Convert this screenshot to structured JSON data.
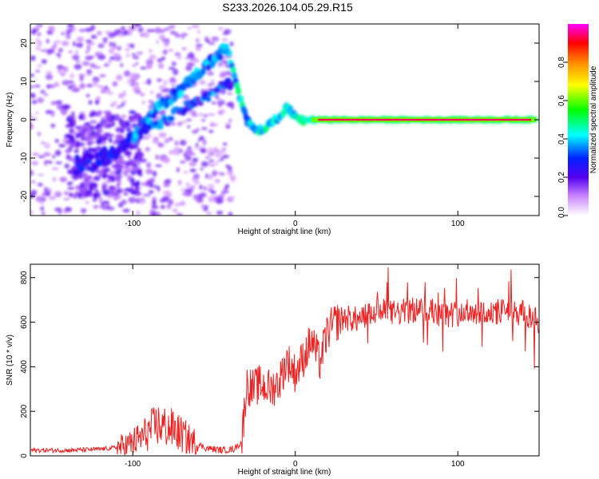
{
  "title": "S233.2026.104.05.29.R15",
  "chart_data": [
    {
      "type": "heatmap",
      "name": "spectrogram",
      "xlabel": "Height of straight line (km)",
      "ylabel": "Frequency (Hz)",
      "xlim": [
        -163,
        150
      ],
      "ylim": [
        -25,
        25
      ],
      "x_ticks": [
        -100,
        0,
        100
      ],
      "y_ticks": [
        -20,
        -10,
        0,
        10,
        20
      ],
      "ridge_trace": [
        {
          "x": -130,
          "y": -12
        },
        {
          "x": -115,
          "y": -9
        },
        {
          "x": -100,
          "y": -5
        },
        {
          "x": -85,
          "y": 3
        },
        {
          "x": -70,
          "y": 8
        },
        {
          "x": -55,
          "y": 14
        },
        {
          "x": -42,
          "y": 19
        },
        {
          "x": -35,
          "y": 7
        },
        {
          "x": -30,
          "y": 0
        },
        {
          "x": -22,
          "y": -3
        },
        {
          "x": -15,
          "y": -1
        },
        {
          "x": -5,
          "y": 3
        },
        {
          "x": 0,
          "y": 1
        },
        {
          "x": 5,
          "y": 0
        },
        {
          "x": 150,
          "y": 0
        }
      ],
      "colorbar": {
        "label": "Normalized spectral amplitude",
        "ticks": [
          "0.0",
          "0.2",
          "0.4",
          "0.6",
          "0.8"
        ],
        "range": [
          0,
          1
        ],
        "colors": [
          "#ffffff",
          "#9955ff",
          "#0000ff",
          "#00ffff",
          "#00ff00",
          "#ffff00",
          "#ff8800",
          "#ff0000",
          "#ff00ff"
        ]
      }
    },
    {
      "type": "line",
      "name": "snr",
      "xlabel": "Height of straight line (km)",
      "ylabel": "SNR (10 * v/v)",
      "xlim": [
        -163,
        150
      ],
      "ylim": [
        0,
        860
      ],
      "x_ticks": [
        -100,
        0,
        100
      ],
      "y_ticks": [
        0,
        200,
        400,
        600,
        800
      ],
      "color": "#ee2222",
      "series": [
        {
          "name": "SNR",
          "x": [
            -163,
            -140,
            -120,
            -105,
            -95,
            -85,
            -75,
            -65,
            -55,
            -45,
            -38,
            -33,
            -30,
            -26,
            -22,
            -15,
            -10,
            -5,
            0,
            5,
            10,
            15,
            20,
            25,
            30,
            40,
            50,
            60,
            70,
            80,
            90,
            100,
            110,
            120,
            130,
            140,
            150
          ],
          "y": [
            25,
            25,
            30,
            40,
            80,
            140,
            120,
            70,
            35,
            25,
            30,
            60,
            320,
            300,
            320,
            300,
            330,
            430,
            370,
            440,
            520,
            420,
            560,
            600,
            620,
            610,
            650,
            640,
            650,
            660,
            630,
            640,
            650,
            640,
            650,
            640,
            600
          ]
        }
      ]
    }
  ]
}
